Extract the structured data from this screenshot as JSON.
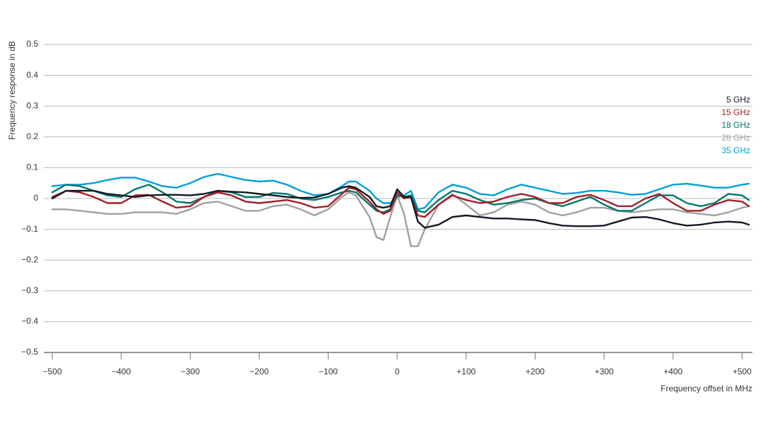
{
  "chart_data": {
    "type": "line",
    "x_label": "Frequency offset in MHz",
    "y_label": "Frequency response in dB",
    "xlim": [
      -500,
      515
    ],
    "ylim": [
      -0.5,
      0.5
    ],
    "xticks": [
      {
        "value": -500,
        "label": "−500"
      },
      {
        "value": -400,
        "label": "−400"
      },
      {
        "value": -300,
        "label": "−300"
      },
      {
        "value": -200,
        "label": "−200"
      },
      {
        "value": -100,
        "label": "−100"
      },
      0,
      {
        "value": 100,
        "label": "+100"
      },
      {
        "value": 200,
        "label": "+200"
      },
      {
        "value": 300,
        "label": "+300"
      },
      {
        "value": 400,
        "label": "+400"
      },
      {
        "value": 500,
        "label": "+500"
      }
    ],
    "yticks": [
      {
        "value": -0.5,
        "label": "−0.5"
      },
      {
        "value": -0.4,
        "label": "−0.4"
      },
      {
        "value": -0.3,
        "label": "−0.3"
      },
      {
        "value": -0.2,
        "label": "−0.2"
      },
      {
        "value": -0.1,
        "label": "−0.1"
      },
      0,
      0.1,
      0.2,
      0.3,
      0.4,
      0.5
    ],
    "grid": true,
    "legend": "right",
    "x": [
      -500,
      -480,
      -460,
      -440,
      -420,
      -400,
      -380,
      -360,
      -340,
      -320,
      -300,
      -280,
      -260,
      -240,
      -220,
      -200,
      -180,
      -160,
      -140,
      -120,
      -100,
      -80,
      -70,
      -60,
      -40,
      -30,
      -20,
      -10,
      0,
      10,
      20,
      30,
      40,
      60,
      80,
      100,
      120,
      140,
      160,
      180,
      200,
      220,
      240,
      260,
      280,
      300,
      320,
      340,
      360,
      380,
      400,
      420,
      440,
      460,
      480,
      500,
      510
    ],
    "series": [
      {
        "name": "5 GHz",
        "color": "#141a24",
        "values": [
          0,
          0.025,
          0.025,
          0.025,
          0.015,
          0.01,
          0.005,
          0.01,
          0.012,
          0.012,
          0.01,
          0.015,
          0.025,
          0.022,
          0.02,
          0.015,
          0.01,
          0.005,
          0.002,
          0.003,
          0.015,
          0.035,
          0.04,
          0.035,
          0.005,
          -0.025,
          -0.03,
          -0.025,
          0.03,
          0.005,
          0.005,
          -0.075,
          -0.095,
          -0.085,
          -0.06,
          -0.055,
          -0.06,
          -0.065,
          -0.065,
          -0.068,
          -0.07,
          -0.08,
          -0.088,
          -0.09,
          -0.09,
          -0.088,
          -0.075,
          -0.062,
          -0.06,
          -0.068,
          -0.08,
          -0.088,
          -0.085,
          -0.078,
          -0.075,
          -0.078,
          -0.085
        ]
      },
      {
        "name": "15 GHz",
        "color": "#a31f26",
        "values": [
          0.005,
          0.025,
          0.02,
          0.005,
          -0.015,
          -0.015,
          0.01,
          0.012,
          -0.01,
          -0.03,
          -0.025,
          0.005,
          0.02,
          0.01,
          -0.01,
          -0.015,
          -0.01,
          -0.005,
          -0.015,
          -0.03,
          -0.025,
          0.015,
          0.035,
          0.03,
          -0.01,
          -0.035,
          -0.05,
          -0.04,
          0.02,
          0,
          0.005,
          -0.055,
          -0.06,
          -0.02,
          0.01,
          -0.005,
          -0.015,
          -0.01,
          0.005,
          0.015,
          0.005,
          -0.015,
          -0.015,
          0.005,
          0.012,
          -0.005,
          -0.025,
          -0.025,
          0,
          0.015,
          -0.015,
          -0.04,
          -0.04,
          -0.02,
          -0.005,
          -0.01,
          -0.025
        ]
      },
      {
        "name": "18 GHz",
        "color": "#00786e",
        "values": [
          0.02,
          0.045,
          0.04,
          0.025,
          0.01,
          0.005,
          0.03,
          0.045,
          0.02,
          -0.01,
          -0.015,
          0.005,
          0.025,
          0.02,
          0.005,
          0.005,
          0.018,
          0.015,
          0,
          -0.005,
          0.005,
          0.02,
          0.025,
          0.02,
          -0.02,
          -0.04,
          -0.045,
          -0.035,
          0.01,
          0.005,
          0.01,
          -0.04,
          -0.045,
          -0.005,
          0.025,
          0.015,
          -0.005,
          -0.02,
          -0.015,
          -0.005,
          0,
          -0.015,
          -0.025,
          -0.01,
          0.005,
          -0.02,
          -0.04,
          -0.04,
          -0.015,
          0.01,
          0.01,
          -0.015,
          -0.025,
          -0.015,
          0.015,
          0.01,
          -0.005
        ]
      },
      {
        "name": "28 GHz",
        "color": "#a0a0a0",
        "values": [
          -0.035,
          -0.035,
          -0.04,
          -0.045,
          -0.05,
          -0.05,
          -0.045,
          -0.045,
          -0.045,
          -0.05,
          -0.035,
          -0.015,
          -0.01,
          -0.025,
          -0.04,
          -0.04,
          -0.025,
          -0.02,
          -0.035,
          -0.055,
          -0.035,
          0.005,
          0.02,
          0.01,
          -0.06,
          -0.125,
          -0.135,
          -0.06,
          0.01,
          -0.05,
          -0.155,
          -0.155,
          -0.1,
          -0.02,
          0.015,
          -0.02,
          -0.055,
          -0.045,
          -0.02,
          -0.01,
          -0.02,
          -0.045,
          -0.055,
          -0.045,
          -0.03,
          -0.03,
          -0.04,
          -0.045,
          -0.04,
          -0.035,
          -0.035,
          -0.045,
          -0.05,
          -0.055,
          -0.045,
          -0.03,
          -0.025
        ]
      },
      {
        "name": "35 GHz",
        "color": "#00a0d8",
        "values": [
          0.04,
          0.045,
          0.045,
          0.05,
          0.06,
          0.068,
          0.068,
          0.055,
          0.04,
          0.035,
          0.05,
          0.07,
          0.08,
          0.07,
          0.06,
          0.055,
          0.058,
          0.045,
          0.025,
          0.01,
          0.015,
          0.04,
          0.055,
          0.055,
          0.025,
          0,
          -0.015,
          -0.015,
          0.005,
          0.01,
          0.025,
          -0.035,
          -0.03,
          0.02,
          0.045,
          0.035,
          0.015,
          0.01,
          0.03,
          0.045,
          0.035,
          0.025,
          0.015,
          0.018,
          0.025,
          0.025,
          0.02,
          0.012,
          0.015,
          0.03,
          0.045,
          0.048,
          0.042,
          0.035,
          0.035,
          0.045,
          0.048
        ]
      }
    ]
  }
}
